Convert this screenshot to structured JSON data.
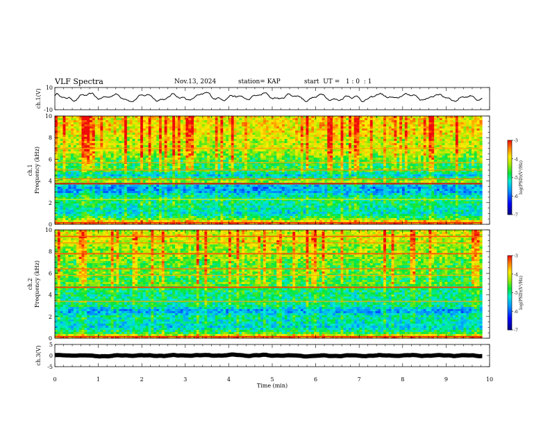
{
  "header": {
    "title": "VLF Spectra",
    "date": "Nov.13, 2024",
    "station": "station= KAP",
    "start_ut": "start  UT =   1 : 0  : 1"
  },
  "chart_data": [
    {
      "type": "line",
      "panel": "ch1-waveform",
      "ylabel": "ch.1(V)",
      "ylim": [
        -10,
        10
      ],
      "y_ticks": [
        "10",
        "-10"
      ],
      "xlim": [
        0,
        10
      ],
      "x_duration_min": 9.83,
      "y_level": 1.5,
      "y_amplitude": 3.5,
      "color": "#000000"
    },
    {
      "type": "heatmap",
      "panel": "ch1-spectrogram",
      "ylabel_channel": "ch.1",
      "ylabel": "Frequency (kHz)",
      "ylim": [
        0,
        10
      ],
      "y_ticks": [
        "0",
        "2",
        "4",
        "6",
        "8",
        "10"
      ],
      "xlim": [
        0,
        10
      ],
      "x_duration_min": 9.83,
      "profile_freq_khz": [
        0,
        0.5,
        1,
        1.5,
        2,
        2.5,
        3,
        3.5,
        4,
        4.5,
        5,
        5.5,
        6,
        6.5,
        7,
        7.5,
        8,
        8.5,
        9,
        9.5,
        10
      ],
      "profile_log_psd": [
        -3.2,
        -4.6,
        -5.3,
        -5.1,
        -5.0,
        -5.0,
        -5.6,
        -5.7,
        -4.2,
        -5.4,
        -4.7,
        -4.8,
        -4.6,
        -4.3,
        -4.1,
        -4.2,
        -4.1,
        -3.9,
        -3.9,
        -3.9,
        -3.9
      ],
      "bands": [
        {
          "freq_khz": 0.15,
          "log_psd": -3.1,
          "width_khz": 0.1
        },
        {
          "freq_khz": 2.3,
          "log_psd": -4.0,
          "width_khz": 0.05
        },
        {
          "freq_khz": 3.75,
          "log_psd": -3.0,
          "width_khz": 0.12
        },
        {
          "freq_khz": 4.2,
          "log_psd": -3.4,
          "width_khz": 0.08
        },
        {
          "freq_khz": 5.0,
          "log_psd": -3.5,
          "width_khz": 0.06
        },
        {
          "freq_khz": 5.7,
          "log_psd": -3.6,
          "width_khz": 0.05
        },
        {
          "freq_khz": 7.0,
          "log_psd": -3.6,
          "width_khz": 0.05
        }
      ],
      "colorbar": {
        "label": "log(PSD)(V²/Hz)",
        "range": [
          -7,
          -3
        ],
        "ticks": [
          "-3",
          "-4",
          "-5",
          "-6",
          "-7"
        ]
      }
    },
    {
      "type": "heatmap",
      "panel": "ch2-spectrogram",
      "ylabel_channel": "ch.2",
      "ylabel": "Frequency (kHz)",
      "ylim": [
        0,
        10
      ],
      "y_ticks": [
        "0",
        "2",
        "4",
        "6",
        "8",
        "10"
      ],
      "xlim": [
        0,
        10
      ],
      "x_duration_min": 9.83,
      "profile_freq_khz": [
        0,
        0.5,
        1,
        1.5,
        2,
        2.5,
        3,
        3.5,
        4,
        4.5,
        5,
        5.5,
        6,
        6.5,
        7,
        7.5,
        8,
        8.5,
        9,
        9.5,
        10
      ],
      "profile_log_psd": [
        -3.3,
        -4.8,
        -5.4,
        -5.2,
        -5.1,
        -5.7,
        -5.0,
        -5.0,
        -5.0,
        -4.9,
        -4.6,
        -4.8,
        -4.5,
        -4.6,
        -4.6,
        -4.3,
        -4.4,
        -4.3,
        -4.1,
        -4.0,
        -4.2
      ],
      "bands": [
        {
          "freq_khz": 0.15,
          "log_psd": -3.1,
          "width_khz": 0.1
        },
        {
          "freq_khz": 3.4,
          "log_psd": -3.6,
          "width_khz": 0.06
        },
        {
          "freq_khz": 4.7,
          "log_psd": -3.2,
          "width_khz": 0.12
        },
        {
          "freq_khz": 5.8,
          "log_psd": -3.6,
          "width_khz": 0.06
        },
        {
          "freq_khz": 6.4,
          "log_psd": -3.4,
          "width_khz": 0.1
        },
        {
          "freq_khz": 7.8,
          "log_psd": -3.3,
          "width_khz": 0.12
        },
        {
          "freq_khz": 8.8,
          "log_psd": -3.5,
          "width_khz": 0.08
        },
        {
          "freq_khz": 9.4,
          "log_psd": -3.3,
          "width_khz": 0.1
        }
      ],
      "colorbar": {
        "label": "log(PSD)(V²/Hz)",
        "range": [
          -7,
          -3
        ],
        "ticks": [
          "-3",
          "-4",
          "-5",
          "-6",
          "-7"
        ]
      }
    },
    {
      "type": "line",
      "panel": "ch3-waveform",
      "ylabel": "ch.3(V)",
      "ylim": [
        -5,
        5
      ],
      "y_ticks": [
        "5",
        "0",
        "-5"
      ],
      "xlim": [
        0,
        10
      ],
      "x_duration_min": 9.83,
      "y_level": 0,
      "y_amplitude": 0.3,
      "color": "#000000"
    }
  ],
  "xaxis": {
    "label": "Time (min)",
    "ticks": [
      "0",
      "1",
      "2",
      "3",
      "4",
      "5",
      "6",
      "7",
      "8",
      "9",
      "10"
    ]
  }
}
